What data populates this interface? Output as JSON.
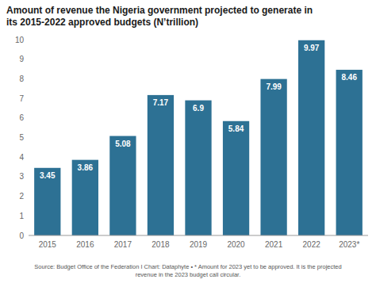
{
  "chart_data": {
    "type": "bar",
    "title": "Amount of revenue the Nigeria government projected to generate in\nits 2015-2022 approved budgets (N’trillion)",
    "source": "Source: Budget Office of the Federation I Chart: Dataphyte • * Amount for 2023 yet to be approved. It is the projected\nrevenue in the 2023 budget call circular.",
    "categories": [
      "2015",
      "2016",
      "2017",
      "2018",
      "2019",
      "2020",
      "2021",
      "2022",
      "2023*"
    ],
    "values": [
      3.45,
      3.86,
      5.08,
      7.17,
      6.9,
      5.84,
      7.99,
      9.97,
      8.46
    ],
    "color": "#2d7194",
    "ylim": [
      0,
      10
    ],
    "yticks": [
      0,
      1,
      2,
      3,
      4,
      5,
      6,
      7,
      8,
      9,
      10
    ],
    "grid": false,
    "data_labels": true
  }
}
